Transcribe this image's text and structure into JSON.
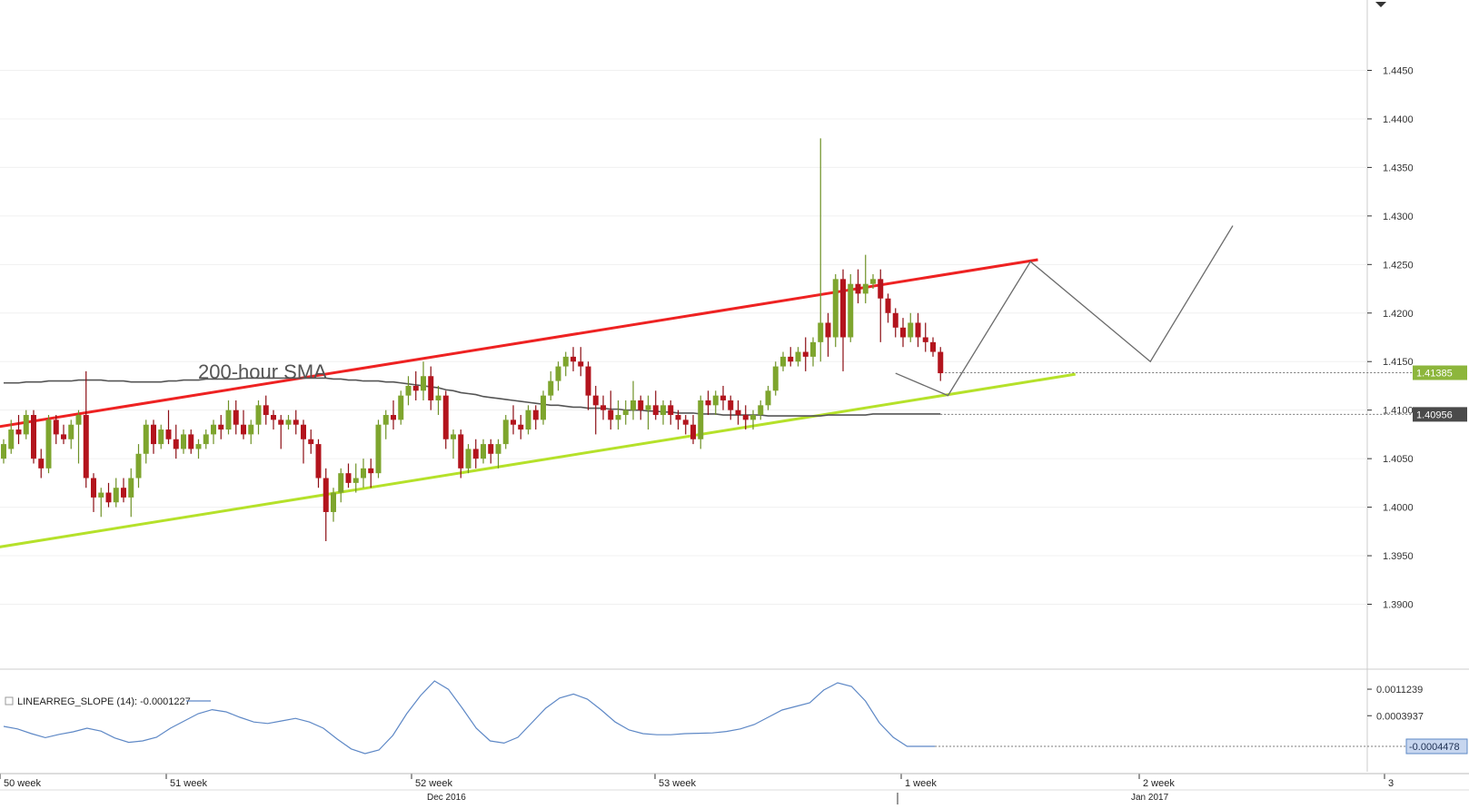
{
  "chart_data": {
    "type": "candlestick",
    "annotation": "200-hour SMA",
    "price_axis": {
      "ticks": [
        "1.4450",
        "1.4400",
        "1.4350",
        "1.4300",
        "1.4250",
        "1.4200",
        "1.4150",
        "1.4100",
        "1.4050",
        "1.4000",
        "1.3950",
        "1.3900"
      ],
      "ylim": [
        1.3835,
        1.4515
      ],
      "markers": [
        {
          "label": "1.41385",
          "value": 1.41385,
          "color": "#8db63c"
        },
        {
          "label": "1.40956",
          "value": 1.40956,
          "color": "#4a4a4a"
        }
      ]
    },
    "time_axis": {
      "week_labels": [
        "50 week",
        "51 week",
        "52 week",
        "53 week",
        "1 week",
        "2 week",
        "3"
      ],
      "month_labels": [
        "Dec 2016",
        "Jan 2017"
      ]
    },
    "indicator": {
      "label": "LINEARREG_SLOPE (14): -0.0001227",
      "ticks": [
        "0.0011239",
        "0.0003937"
      ],
      "current_label": "-0.0004478",
      "ylim": [
        -0.00065,
        0.0016
      ],
      "values": [
        0.0001,
        3e-05,
        -0.0001,
        -0.00021,
        -0.00012,
        -5e-05,
        5e-05,
        -3e-05,
        -0.00022,
        -0.00034,
        -0.0003,
        -0.0002,
        5e-05,
        0.00025,
        0.00045,
        0.00056,
        0.0005,
        0.00035,
        0.00022,
        0.00018,
        0.00025,
        0.00032,
        0.00022,
        5e-05,
        -0.00025,
        -0.00052,
        -0.00065,
        -0.00055,
        -0.00015,
        0.00045,
        0.00095,
        0.00135,
        0.00112,
        0.0006,
        5e-05,
        -0.0003,
        -0.00036,
        -0.0002,
        0.0002,
        0.0006,
        0.00088,
        0.00099,
        0.00085,
        0.00055,
        0.00022,
        0.0,
        -0.0001,
        -0.00013,
        -0.00013,
        -0.0001,
        -9e-05,
        -8e-05,
        -4e-05,
        3e-05,
        0.00015,
        0.00035,
        0.00055,
        0.00065,
        0.00075,
        0.0011,
        0.0013,
        0.0012,
        0.0008,
        0.0002,
        -0.0002,
        -0.00045,
        -0.00045,
        -0.00045
      ]
    },
    "ohlc": [
      [
        1.405,
        1.407,
        1.4045,
        1.4065
      ],
      [
        1.406,
        1.409,
        1.4055,
        1.408
      ],
      [
        1.408,
        1.4095,
        1.4065,
        1.4075
      ],
      [
        1.4075,
        1.41,
        1.407,
        1.4095
      ],
      [
        1.4095,
        1.41,
        1.4045,
        1.405
      ],
      [
        1.405,
        1.406,
        1.403,
        1.404
      ],
      [
        1.404,
        1.4095,
        1.4035,
        1.409
      ],
      [
        1.409,
        1.4095,
        1.4065,
        1.4075
      ],
      [
        1.4075,
        1.4085,
        1.4065,
        1.407
      ],
      [
        1.407,
        1.409,
        1.406,
        1.4085
      ],
      [
        1.4085,
        1.41,
        1.4045,
        1.4095
      ],
      [
        1.4095,
        1.414,
        1.402,
        1.403
      ],
      [
        1.403,
        1.4035,
        1.3995,
        1.401
      ],
      [
        1.401,
        1.402,
        1.399,
        1.4015
      ],
      [
        1.4015,
        1.4025,
        1.4,
        1.4005
      ],
      [
        1.4005,
        1.403,
        1.4,
        1.402
      ],
      [
        1.402,
        1.403,
        1.4005,
        1.401
      ],
      [
        1.401,
        1.404,
        1.399,
        1.403
      ],
      [
        1.403,
        1.4065,
        1.402,
        1.4055
      ],
      [
        1.4055,
        1.409,
        1.4045,
        1.4085
      ],
      [
        1.4085,
        1.409,
        1.4055,
        1.4065
      ],
      [
        1.4065,
        1.4085,
        1.406,
        1.408
      ],
      [
        1.408,
        1.41,
        1.4065,
        1.407
      ],
      [
        1.407,
        1.4085,
        1.405,
        1.406
      ],
      [
        1.406,
        1.408,
        1.4055,
        1.4075
      ],
      [
        1.4075,
        1.408,
        1.4055,
        1.406
      ],
      [
        1.406,
        1.407,
        1.405,
        1.4065
      ],
      [
        1.4065,
        1.408,
        1.406,
        1.4075
      ],
      [
        1.4075,
        1.409,
        1.4065,
        1.4085
      ],
      [
        1.4085,
        1.4095,
        1.407,
        1.408
      ],
      [
        1.408,
        1.411,
        1.4075,
        1.41
      ],
      [
        1.41,
        1.411,
        1.4075,
        1.4085
      ],
      [
        1.4085,
        1.41,
        1.407,
        1.4075
      ],
      [
        1.4075,
        1.409,
        1.4065,
        1.4085
      ],
      [
        1.4085,
        1.411,
        1.4075,
        1.4105
      ],
      [
        1.4105,
        1.4115,
        1.4085,
        1.4095
      ],
      [
        1.4095,
        1.41,
        1.408,
        1.409
      ],
      [
        1.409,
        1.4095,
        1.406,
        1.4085
      ],
      [
        1.4085,
        1.4095,
        1.408,
        1.409
      ],
      [
        1.409,
        1.41,
        1.4075,
        1.4085
      ],
      [
        1.4085,
        1.409,
        1.4045,
        1.407
      ],
      [
        1.407,
        1.408,
        1.4055,
        1.4065
      ],
      [
        1.4065,
        1.407,
        1.402,
        1.403
      ],
      [
        1.403,
        1.404,
        1.3965,
        1.3995
      ],
      [
        1.3995,
        1.402,
        1.3985,
        1.4015
      ],
      [
        1.4015,
        1.404,
        1.4005,
        1.4035
      ],
      [
        1.4035,
        1.4045,
        1.402,
        1.4025
      ],
      [
        1.4025,
        1.4045,
        1.4015,
        1.403
      ],
      [
        1.403,
        1.405,
        1.402,
        1.404
      ],
      [
        1.404,
        1.405,
        1.402,
        1.4035
      ],
      [
        1.4035,
        1.409,
        1.403,
        1.4085
      ],
      [
        1.4085,
        1.41,
        1.407,
        1.4095
      ],
      [
        1.4095,
        1.411,
        1.408,
        1.409
      ],
      [
        1.409,
        1.412,
        1.4085,
        1.4115
      ],
      [
        1.4115,
        1.4135,
        1.4105,
        1.4125
      ],
      [
        1.4125,
        1.414,
        1.411,
        1.412
      ],
      [
        1.412,
        1.415,
        1.411,
        1.4135
      ],
      [
        1.4135,
        1.4145,
        1.41,
        1.411
      ],
      [
        1.411,
        1.4125,
        1.4095,
        1.4115
      ],
      [
        1.4115,
        1.412,
        1.406,
        1.407
      ],
      [
        1.407,
        1.408,
        1.405,
        1.4075
      ],
      [
        1.4075,
        1.408,
        1.403,
        1.404
      ],
      [
        1.404,
        1.4065,
        1.4035,
        1.406
      ],
      [
        1.406,
        1.407,
        1.404,
        1.405
      ],
      [
        1.405,
        1.407,
        1.4045,
        1.4065
      ],
      [
        1.4065,
        1.407,
        1.4045,
        1.4055
      ],
      [
        1.4055,
        1.407,
        1.404,
        1.4065
      ],
      [
        1.4065,
        1.4095,
        1.406,
        1.409
      ],
      [
        1.409,
        1.4105,
        1.4075,
        1.4085
      ],
      [
        1.4085,
        1.4095,
        1.407,
        1.408
      ],
      [
        1.408,
        1.4105,
        1.4075,
        1.41
      ],
      [
        1.41,
        1.4105,
        1.408,
        1.409
      ],
      [
        1.409,
        1.412,
        1.4085,
        1.4115
      ],
      [
        1.4115,
        1.414,
        1.411,
        1.413
      ],
      [
        1.413,
        1.415,
        1.412,
        1.4145
      ],
      [
        1.4145,
        1.416,
        1.4135,
        1.4155
      ],
      [
        1.4155,
        1.4165,
        1.414,
        1.415
      ],
      [
        1.415,
        1.4165,
        1.4135,
        1.4145
      ],
      [
        1.4145,
        1.415,
        1.41,
        1.4115
      ],
      [
        1.4115,
        1.4125,
        1.4075,
        1.4105
      ],
      [
        1.4105,
        1.4115,
        1.409,
        1.41
      ],
      [
        1.41,
        1.412,
        1.408,
        1.409
      ],
      [
        1.409,
        1.411,
        1.408,
        1.4095
      ],
      [
        1.4095,
        1.411,
        1.4085,
        1.41
      ],
      [
        1.41,
        1.413,
        1.409,
        1.411
      ],
      [
        1.411,
        1.4115,
        1.409,
        1.41
      ],
      [
        1.41,
        1.4115,
        1.408,
        1.4105
      ],
      [
        1.4105,
        1.412,
        1.409,
        1.4095
      ],
      [
        1.4095,
        1.411,
        1.4085,
        1.4105
      ],
      [
        1.4105,
        1.411,
        1.4085,
        1.4095
      ],
      [
        1.4095,
        1.41,
        1.408,
        1.409
      ],
      [
        1.409,
        1.4095,
        1.4075,
        1.4085
      ],
      [
        1.4085,
        1.4095,
        1.4065,
        1.407
      ],
      [
        1.407,
        1.4115,
        1.406,
        1.411
      ],
      [
        1.411,
        1.412,
        1.4095,
        1.4105
      ],
      [
        1.4105,
        1.412,
        1.4095,
        1.4115
      ],
      [
        1.4115,
        1.4125,
        1.41,
        1.411
      ],
      [
        1.411,
        1.4115,
        1.409,
        1.41
      ],
      [
        1.41,
        1.411,
        1.4085,
        1.4095
      ],
      [
        1.4095,
        1.4105,
        1.408,
        1.409
      ],
      [
        1.409,
        1.41,
        1.408,
        1.4095
      ],
      [
        1.4095,
        1.411,
        1.409,
        1.4105
      ],
      [
        1.4105,
        1.4125,
        1.41,
        1.412
      ],
      [
        1.412,
        1.415,
        1.4115,
        1.4145
      ],
      [
        1.4145,
        1.416,
        1.414,
        1.4155
      ],
      [
        1.4155,
        1.4165,
        1.4145,
        1.415
      ],
      [
        1.415,
        1.4165,
        1.4145,
        1.416
      ],
      [
        1.416,
        1.4175,
        1.414,
        1.4155
      ],
      [
        1.4155,
        1.4175,
        1.4145,
        1.417
      ],
      [
        1.417,
        1.438,
        1.415,
        1.419
      ],
      [
        1.419,
        1.42,
        1.4155,
        1.4175
      ],
      [
        1.4175,
        1.424,
        1.4165,
        1.4235
      ],
      [
        1.4235,
        1.4245,
        1.414,
        1.4175
      ],
      [
        1.4175,
        1.424,
        1.417,
        1.423
      ],
      [
        1.423,
        1.4245,
        1.421,
        1.422
      ],
      [
        1.422,
        1.426,
        1.421,
        1.423
      ],
      [
        1.423,
        1.424,
        1.4225,
        1.4235
      ],
      [
        1.4235,
        1.4245,
        1.417,
        1.4215
      ],
      [
        1.4215,
        1.422,
        1.419,
        1.42
      ],
      [
        1.42,
        1.4205,
        1.4175,
        1.4185
      ],
      [
        1.4185,
        1.4195,
        1.4165,
        1.4175
      ],
      [
        1.4175,
        1.42,
        1.417,
        1.419
      ],
      [
        1.419,
        1.42,
        1.4165,
        1.4175
      ],
      [
        1.4175,
        1.419,
        1.416,
        1.417
      ],
      [
        1.417,
        1.4175,
        1.4155,
        1.416
      ],
      [
        1.416,
        1.4165,
        1.413,
        1.4138
      ]
    ],
    "sma": [
      1.4128,
      1.4128,
      1.4128,
      1.4129,
      1.4129,
      1.4129,
      1.413,
      1.413,
      1.413,
      1.413,
      1.4131,
      1.4131,
      1.4131,
      1.4131,
      1.413,
      1.413,
      1.413,
      1.4129,
      1.4129,
      1.4129,
      1.4129,
      1.4129,
      1.413,
      1.413,
      1.4131,
      1.4131,
      1.4131,
      1.4132,
      1.4132,
      1.4132,
      1.4132,
      1.4132,
      1.4133,
      1.4133,
      1.4133,
      1.4133,
      1.4133,
      1.4133,
      1.4133,
      1.4133,
      1.4133,
      1.4133,
      1.4133,
      1.4133,
      1.4132,
      1.4132,
      1.4131,
      1.4131,
      1.413,
      1.413,
      1.413,
      1.4129,
      1.4129,
      1.4128,
      1.4127,
      1.4126,
      1.4125,
      1.4124,
      1.4123,
      1.4121,
      1.412,
      1.4118,
      1.4117,
      1.4116,
      1.4114,
      1.4113,
      1.4112,
      1.4111,
      1.411,
      1.4109,
      1.4108,
      1.4107,
      1.4106,
      1.4105,
      1.4105,
      1.4104,
      1.4103,
      1.4103,
      1.4102,
      1.4102,
      1.4102,
      1.4101,
      1.4101,
      1.41,
      1.41,
      1.41,
      1.4099,
      1.4099,
      1.4098,
      1.4098,
      1.4097,
      1.4097,
      1.4097,
      1.4096,
      1.4096,
      1.4096,
      1.4095,
      1.4095,
      1.4095,
      1.4095,
      1.4095,
      1.4095,
      1.4094,
      1.4094,
      1.4094,
      1.4094,
      1.4094,
      1.4094,
      1.4094,
      1.4094,
      1.4095,
      1.4095,
      1.4095,
      1.4095,
      1.4095,
      1.4095,
      1.4096,
      1.4096,
      1.4096,
      1.4096,
      1.4096,
      1.4096,
      1.4096,
      1.4096,
      1.4096,
      1.4096
    ],
    "trendlines": [
      {
        "name": "resistance",
        "color": "#ee2222",
        "from": [
          -3,
          1.408
        ],
        "to": [
          138,
          1.4255
        ]
      },
      {
        "name": "support",
        "color": "#b5e12a",
        "from": [
          -3,
          1.3956
        ],
        "to": [
          143,
          1.4137
        ]
      }
    ],
    "projection": [
      [
        119,
        1.4138
      ],
      [
        126,
        1.4115
      ],
      [
        137,
        1.4253
      ],
      [
        153,
        1.415
      ],
      [
        164,
        1.429
      ]
    ],
    "colors": {
      "up": "#7ea52e",
      "down": "#b3141d",
      "up_wick": "#6e9126",
      "down_wick": "#8c0d14",
      "sma": "#555555",
      "indicator": "#5e88c6",
      "projection": "#6b6b6b"
    }
  }
}
